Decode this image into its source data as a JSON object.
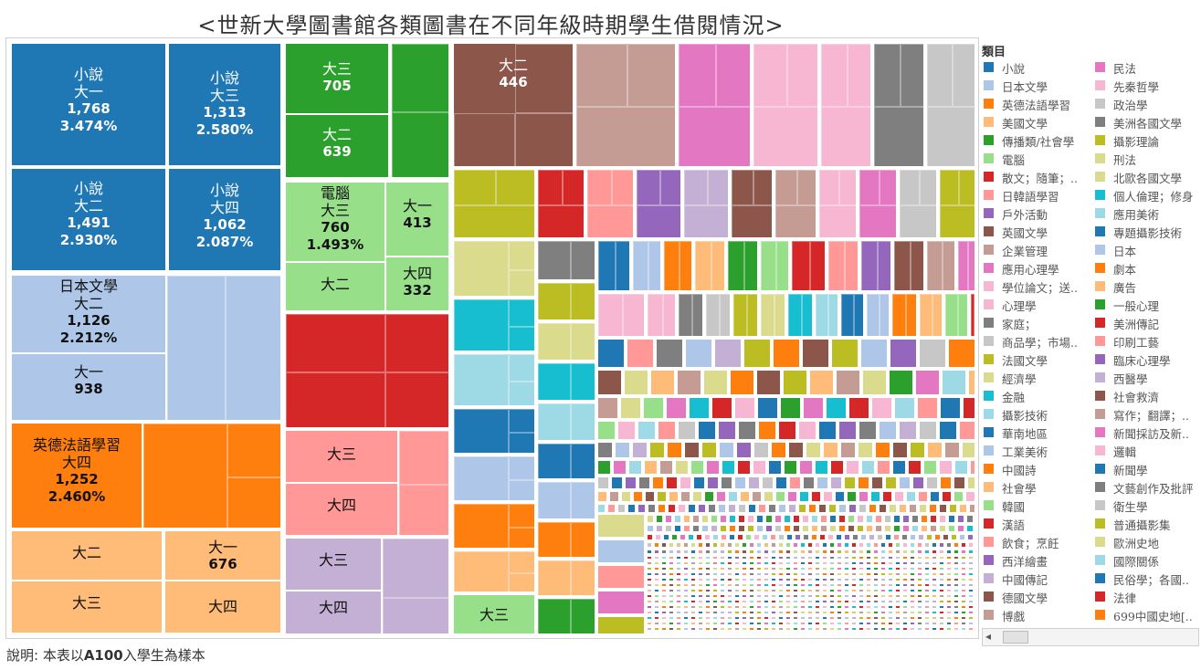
{
  "title": "<世新大學圖書館各類圖書在不同年級時期學生借閱情況>",
  "note": {
    "prefix": "說明: 本表以",
    "bold": "A100",
    "suffix": "入學生為樣本"
  },
  "legend": {
    "title": "類目",
    "items": [
      {
        "label": "小說",
        "color": "#1f77b4"
      },
      {
        "label": "日本文學",
        "color": "#aec7e8"
      },
      {
        "label": "英德法語學習",
        "color": "#ff7f0e"
      },
      {
        "label": "美國文學",
        "color": "#ffbb78"
      },
      {
        "label": "傳播類/社會學",
        "color": "#2ca02c"
      },
      {
        "label": "電腦",
        "color": "#98df8a"
      },
      {
        "label": "散文；隨筆；..",
        "color": "#d62728"
      },
      {
        "label": "日韓語學習",
        "color": "#ff9896"
      },
      {
        "label": "戶外活動",
        "color": "#9467bd"
      },
      {
        "label": "英國文學",
        "color": "#8c564b"
      },
      {
        "label": "企業管理",
        "color": "#c49c94"
      },
      {
        "label": "應用心理學",
        "color": "#e377c2"
      },
      {
        "label": "學位論文；送..",
        "color": "#f7b6d2"
      },
      {
        "label": "心理學",
        "color": "#f7b6d2"
      },
      {
        "label": "家庭；",
        "color": "#7f7f7f"
      },
      {
        "label": "商品學；市場..",
        "color": "#c7c7c7"
      },
      {
        "label": "法國文學",
        "color": "#bcbd22"
      },
      {
        "label": "經濟學",
        "color": "#dbdb8d"
      },
      {
        "label": "金融",
        "color": "#17becf"
      },
      {
        "label": "攝影技術",
        "color": "#9edae5"
      },
      {
        "label": "華南地區",
        "color": "#1f77b4"
      },
      {
        "label": "工業美術",
        "color": "#aec7e8"
      },
      {
        "label": "中國詩",
        "color": "#ff7f0e"
      },
      {
        "label": "社會學",
        "color": "#ffbb78"
      },
      {
        "label": "韓國",
        "color": "#98df8a"
      },
      {
        "label": "漢語",
        "color": "#d62728"
      },
      {
        "label": "飲食；烹飪",
        "color": "#ff9896"
      },
      {
        "label": "西洋繪畫",
        "color": "#9467bd"
      },
      {
        "label": "中國傳記",
        "color": "#c5b0d5"
      },
      {
        "label": "德國文學",
        "color": "#8c564b"
      },
      {
        "label": "博戲",
        "color": "#c49c94"
      },
      {
        "label": "民法",
        "color": "#e377c2"
      },
      {
        "label": "先秦哲學",
        "color": "#f7b6d2"
      },
      {
        "label": "政治學",
        "color": "#c7c7c7"
      },
      {
        "label": "美洲各國文學",
        "color": "#7f7f7f"
      },
      {
        "label": "攝影理論",
        "color": "#bcbd22"
      },
      {
        "label": "刑法",
        "color": "#dbdb8d"
      },
      {
        "label": "北歐各國文學",
        "color": "#dbdb8d"
      },
      {
        "label": "個人倫理；修身",
        "color": "#17becf"
      },
      {
        "label": "應用美術",
        "color": "#9edae5"
      },
      {
        "label": "專題攝影技術",
        "color": "#1f77b4"
      },
      {
        "label": "日本",
        "color": "#aec7e8"
      },
      {
        "label": "劇本",
        "color": "#ff7f0e"
      },
      {
        "label": "廣告",
        "color": "#ffbb78"
      },
      {
        "label": "一般心理",
        "color": "#2ca02c"
      },
      {
        "label": "美洲傳記",
        "color": "#d62728"
      },
      {
        "label": "印刷工藝",
        "color": "#ff9896"
      },
      {
        "label": "臨床心理學",
        "color": "#9467bd"
      },
      {
        "label": "西醫學",
        "color": "#c5b0d5"
      },
      {
        "label": "社會救濟",
        "color": "#8c564b"
      },
      {
        "label": "寫作；翻譯；..",
        "color": "#c49c94"
      },
      {
        "label": "新聞採訪及新..",
        "color": "#e377c2"
      },
      {
        "label": "邏輯",
        "color": "#f7b6d2"
      },
      {
        "label": "新聞學",
        "color": "#1f77b4"
      },
      {
        "label": "文藝創作及批評",
        "color": "#7f7f7f"
      },
      {
        "label": "衛生學",
        "color": "#c7c7c7"
      },
      {
        "label": "普通攝影集",
        "color": "#bcbd22"
      },
      {
        "label": "歐洲史地",
        "color": "#dbdb8d"
      },
      {
        "label": "國際關係",
        "color": "#9edae5"
      },
      {
        "label": "民俗學；各國..",
        "color": "#1f77b4"
      },
      {
        "label": "法律",
        "color": "#d62728"
      },
      {
        "label": "699中國史地[..",
        "color": "#ff7f0e"
      }
    ]
  },
  "chart_data": {
    "type": "treemap",
    "title": "<世新大學圖書館各類圖書在不同年級時期學生借閱情況>",
    "groups": [
      {
        "category": "小說",
        "color": "#1f77b4",
        "cells": [
          {
            "grade": "大一",
            "value": 1768,
            "percent": "3.474%"
          },
          {
            "grade": "大三",
            "value": 1313,
            "percent": "2.580%"
          },
          {
            "grade": "大二",
            "value": 1491,
            "percent": "2.930%"
          },
          {
            "grade": "大四",
            "value": 1062,
            "percent": "2.087%"
          }
        ]
      },
      {
        "category": "日本文學",
        "color": "#aec7e8",
        "cells": [
          {
            "grade": "大二",
            "value": 1126,
            "percent": "2.212%"
          },
          {
            "grade": "大一",
            "value": 938
          }
        ]
      },
      {
        "category": "英德法語學習",
        "color": "#ff7f0e",
        "cells": [
          {
            "grade": "大四",
            "value": 1252,
            "percent": "2.460%"
          }
        ]
      },
      {
        "category": "美國文學",
        "color": "#ffbb78",
        "cells": [
          {
            "grade": "大二"
          },
          {
            "grade": "大一",
            "value": 676
          },
          {
            "grade": "大三"
          },
          {
            "grade": "大四"
          }
        ]
      },
      {
        "category": "傳播類/社會學",
        "color": "#2ca02c",
        "cells": [
          {
            "grade": "大三",
            "value": 705
          },
          {
            "grade": "大二",
            "value": 639
          }
        ]
      },
      {
        "category": "電腦",
        "color": "#98df8a",
        "cells": [
          {
            "grade": "大三",
            "value": 760,
            "percent": "1.493%"
          },
          {
            "grade": "大一",
            "value": 413
          },
          {
            "grade": "大二"
          },
          {
            "grade": "大四",
            "value": 332
          }
        ]
      },
      {
        "category": "散文；隨筆；..",
        "color": "#d62728",
        "cells": []
      },
      {
        "category": "日韓語學習",
        "color": "#ff9896",
        "cells": [
          {
            "grade": "大三"
          },
          {
            "grade": "大四"
          }
        ]
      },
      {
        "category": "戶外活動",
        "color": "#c5b0d5",
        "cells": [
          {
            "grade": "大三"
          },
          {
            "grade": "大四"
          }
        ]
      },
      {
        "category": "英國文學",
        "color": "#8c564b",
        "cells": [
          {
            "grade": "大二",
            "value": 446
          }
        ]
      },
      {
        "category": "電腦",
        "color": "#98df8a",
        "cells": [
          {
            "grade": "大三"
          }
        ]
      }
    ]
  }
}
